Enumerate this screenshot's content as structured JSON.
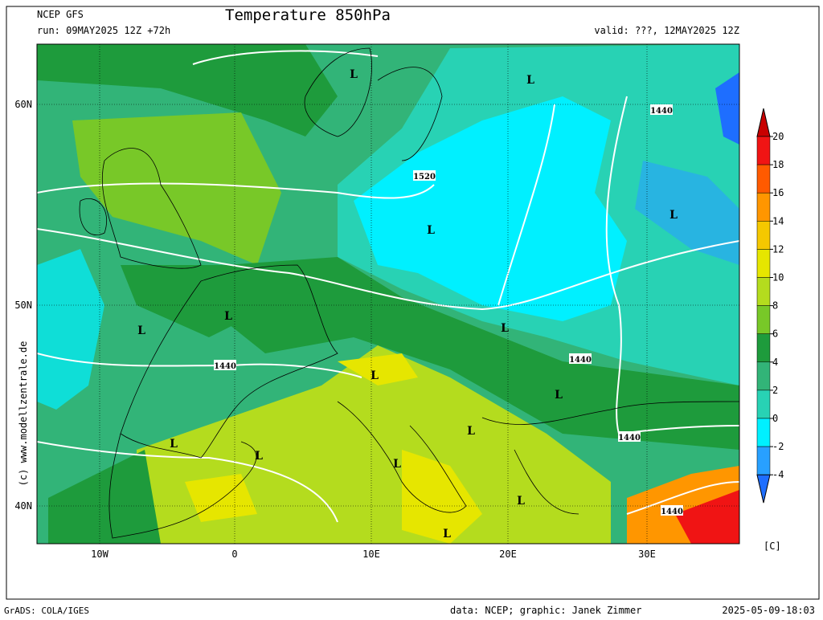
{
  "header": {
    "model": "NCEP GFS",
    "title": "Temperature 850hPa",
    "run": "run: 09MAY2025 12Z +72h",
    "valid": "valid: ???, 12MAY2025 12Z"
  },
  "map": {
    "lat_labels": [
      "60N",
      "50N",
      "40N"
    ],
    "lon_labels": [
      "10W",
      "0",
      "10E",
      "20E",
      "30E"
    ],
    "side_credit": "(c) www.modellzentrale.de",
    "annotations": [
      "1440",
      "1440",
      "1440",
      "1440",
      "1440",
      "1520",
      "L",
      "L",
      "L",
      "L",
      "L",
      "L",
      "L",
      "L",
      "L",
      "L",
      "L",
      "L",
      "L",
      "L",
      "L"
    ]
  },
  "colorbar": {
    "ticks": [
      20,
      18,
      16,
      14,
      12,
      10,
      8,
      6,
      4,
      2,
      0,
      -2,
      -4
    ],
    "colors": [
      "#c80000",
      "#f01414",
      "#ff5a00",
      "#ff9600",
      "#f5c800",
      "#e6e600",
      "#b4dc1e",
      "#78c828",
      "#1e9b3c",
      "#32b478",
      "#28d2b4",
      "#00f0ff",
      "#28a0ff",
      "#1e6eff"
    ],
    "unit": "[C]"
  },
  "footer": {
    "left": "GrADS: COLA/IGES",
    "credit": "data: NCEP; graphic: Janek Zimmer",
    "date": "2025-05-09-18:03"
  }
}
